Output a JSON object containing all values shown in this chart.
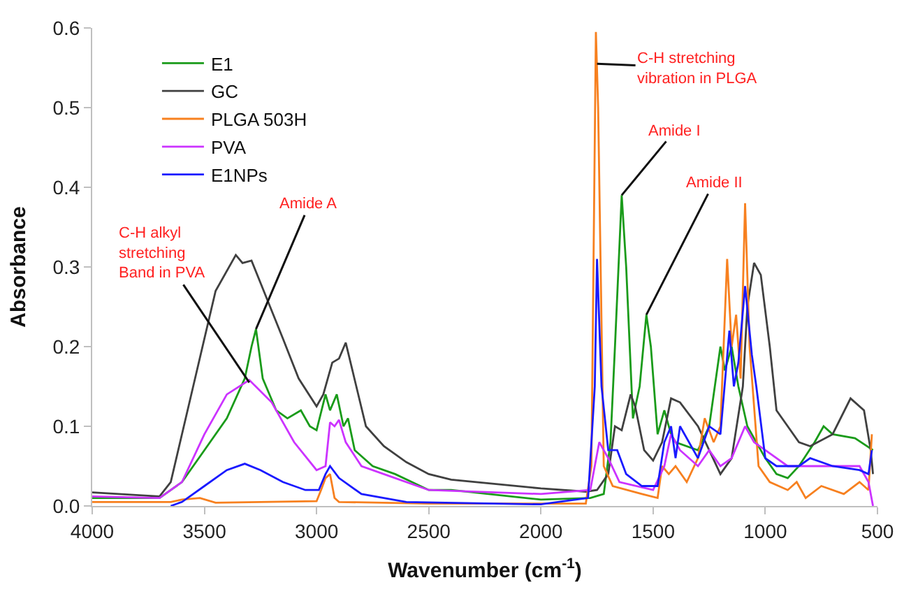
{
  "chart_data": {
    "type": "line",
    "xlabel": "Wavenumber (cm$^{-1}$)",
    "ylabel": "Absorbance",
    "xlim": [
      4000,
      500
    ],
    "xticks": [
      4000,
      3500,
      3000,
      2500,
      2000,
      1500,
      1000,
      500
    ],
    "ylim": [
      0,
      0.6
    ],
    "yticks": [
      {
        "value": 0,
        "label": "0.0"
      },
      0.1,
      0.2,
      0.3,
      0.4,
      0.5,
      0.6
    ],
    "legend": "top left",
    "marker": "none",
    "line_style": "solid",
    "series": [
      {
        "name": "E1",
        "color": "#1a9b1a",
        "x": [
          4000,
          3700,
          3600,
          3500,
          3400,
          3320,
          3290,
          3270,
          3240,
          3180,
          3130,
          3070,
          3030,
          3000,
          2960,
          2940,
          2910,
          2880,
          2860,
          2830,
          2750,
          2650,
          2500,
          2400,
          2000,
          1780,
          1720,
          1690,
          1670,
          1640,
          1620,
          1590,
          1560,
          1530,
          1510,
          1480,
          1450,
          1420,
          1400,
          1300,
          1250,
          1200,
          1180,
          1150,
          1120,
          1080,
          1000,
          950,
          900,
          850,
          780,
          740,
          700,
          600,
          520
        ],
        "values": [
          0.01,
          0.01,
          0.03,
          0.07,
          0.11,
          0.16,
          0.2,
          0.222,
          0.16,
          0.12,
          0.11,
          0.12,
          0.1,
          0.095,
          0.14,
          0.12,
          0.14,
          0.1,
          0.11,
          0.07,
          0.05,
          0.04,
          0.02,
          0.02,
          0.008,
          0.01,
          0.015,
          0.08,
          0.2,
          0.39,
          0.3,
          0.11,
          0.15,
          0.24,
          0.2,
          0.09,
          0.12,
          0.09,
          0.08,
          0.07,
          0.1,
          0.2,
          0.17,
          0.2,
          0.15,
          0.1,
          0.06,
          0.04,
          0.035,
          0.05,
          0.08,
          0.1,
          0.09,
          0.085,
          0.07
        ]
      },
      {
        "name": "GC",
        "color": "#404040",
        "x": [
          4000,
          3700,
          3650,
          3550,
          3450,
          3360,
          3330,
          3290,
          3250,
          3150,
          3080,
          3000,
          2970,
          2930,
          2900,
          2870,
          2840,
          2780,
          2700,
          2600,
          2500,
          2400,
          2000,
          1800,
          1750,
          1700,
          1670,
          1640,
          1600,
          1580,
          1540,
          1500,
          1460,
          1420,
          1380,
          1300,
          1250,
          1200,
          1150,
          1100,
          1080,
          1050,
          1020,
          980,
          950,
          900,
          850,
          800,
          700,
          620,
          560,
          530,
          520
        ],
        "values": [
          0.017,
          0.012,
          0.03,
          0.15,
          0.27,
          0.315,
          0.305,
          0.308,
          0.28,
          0.21,
          0.16,
          0.125,
          0.14,
          0.18,
          0.185,
          0.205,
          0.17,
          0.1,
          0.075,
          0.055,
          0.04,
          0.033,
          0.022,
          0.018,
          0.02,
          0.04,
          0.1,
          0.095,
          0.14,
          0.125,
          0.07,
          0.057,
          0.08,
          0.135,
          0.13,
          0.1,
          0.07,
          0.04,
          0.06,
          0.15,
          0.25,
          0.305,
          0.29,
          0.2,
          0.12,
          0.1,
          0.08,
          0.075,
          0.09,
          0.135,
          0.12,
          0.07,
          0.04
        ]
      },
      {
        "name": "PLGA 503H",
        "color": "#f7801f",
        "x": [
          4000,
          3650,
          3600,
          3520,
          3450,
          3000,
          2980,
          2960,
          2940,
          2920,
          2900,
          2500,
          1800,
          1775,
          1755,
          1745,
          1720,
          1680,
          1550,
          1480,
          1460,
          1430,
          1400,
          1350,
          1300,
          1270,
          1230,
          1200,
          1170,
          1150,
          1130,
          1110,
          1090,
          1070,
          1030,
          980,
          900,
          860,
          820,
          750,
          650,
          580,
          540,
          525
        ],
        "values": [
          0.005,
          0.005,
          0.008,
          0.01,
          0.004,
          0.006,
          0.02,
          0.035,
          0.04,
          0.01,
          0.005,
          0.003,
          0.003,
          0.05,
          0.595,
          0.5,
          0.05,
          0.025,
          0.015,
          0.01,
          0.05,
          0.04,
          0.05,
          0.03,
          0.06,
          0.11,
          0.08,
          0.1,
          0.31,
          0.2,
          0.24,
          0.16,
          0.38,
          0.2,
          0.05,
          0.03,
          0.02,
          0.03,
          0.01,
          0.025,
          0.015,
          0.03,
          0.02,
          0.09
        ]
      },
      {
        "name": "PVA",
        "color": "#cc33ff",
        "x": [
          4000,
          3700,
          3600,
          3500,
          3400,
          3300,
          3200,
          3100,
          3000,
          2960,
          2940,
          2920,
          2900,
          2870,
          2800,
          2650,
          2500,
          2000,
          1780,
          1740,
          1700,
          1650,
          1500,
          1450,
          1420,
          1380,
          1300,
          1250,
          1200,
          1150,
          1090,
          1050,
          1000,
          900,
          700,
          580,
          540,
          520
        ],
        "values": [
          0.012,
          0.01,
          0.03,
          0.09,
          0.14,
          0.158,
          0.13,
          0.08,
          0.045,
          0.05,
          0.105,
          0.1,
          0.108,
          0.08,
          0.05,
          0.035,
          0.02,
          0.015,
          0.02,
          0.08,
          0.06,
          0.03,
          0.02,
          0.05,
          0.09,
          0.07,
          0.05,
          0.07,
          0.05,
          0.06,
          0.1,
          0.08,
          0.07,
          0.05,
          0.05,
          0.05,
          0.03,
          0.0
        ]
      },
      {
        "name": "E1NPs",
        "color": "#1a1aff",
        "x": [
          3650,
          3600,
          3500,
          3400,
          3320,
          3250,
          3150,
          3050,
          2990,
          2960,
          2940,
          2900,
          2800,
          2600,
          2000,
          1790,
          1760,
          1750,
          1730,
          1700,
          1660,
          1620,
          1550,
          1480,
          1450,
          1420,
          1400,
          1380,
          1300,
          1250,
          1200,
          1160,
          1140,
          1120,
          1090,
          1060,
          1040,
          1000,
          950,
          850,
          800,
          700,
          580,
          540,
          525
        ],
        "values": [
          0.0,
          0.005,
          0.025,
          0.045,
          0.053,
          0.045,
          0.03,
          0.02,
          0.02,
          0.04,
          0.05,
          0.035,
          0.015,
          0.005,
          0.002,
          0.01,
          0.15,
          0.31,
          0.15,
          0.07,
          0.07,
          0.04,
          0.025,
          0.025,
          0.08,
          0.1,
          0.06,
          0.1,
          0.06,
          0.1,
          0.09,
          0.22,
          0.15,
          0.18,
          0.276,
          0.19,
          0.15,
          0.06,
          0.05,
          0.05,
          0.06,
          0.05,
          0.045,
          0.04,
          0.07
        ]
      }
    ],
    "annotations": [
      {
        "text": "C-H alkyl\nstretching\nBand in PVA",
        "x": 3300,
        "y": 0.155
      },
      {
        "text": "Amide A",
        "x": 3270,
        "y": 0.222
      },
      {
        "text": "C-H stretching\nvibration in PLGA",
        "x": 1750,
        "y": 0.555
      },
      {
        "text": "Amide I",
        "x": 1640,
        "y": 0.39
      },
      {
        "text": "Amide II",
        "x": 1530,
        "y": 0.24
      }
    ]
  }
}
